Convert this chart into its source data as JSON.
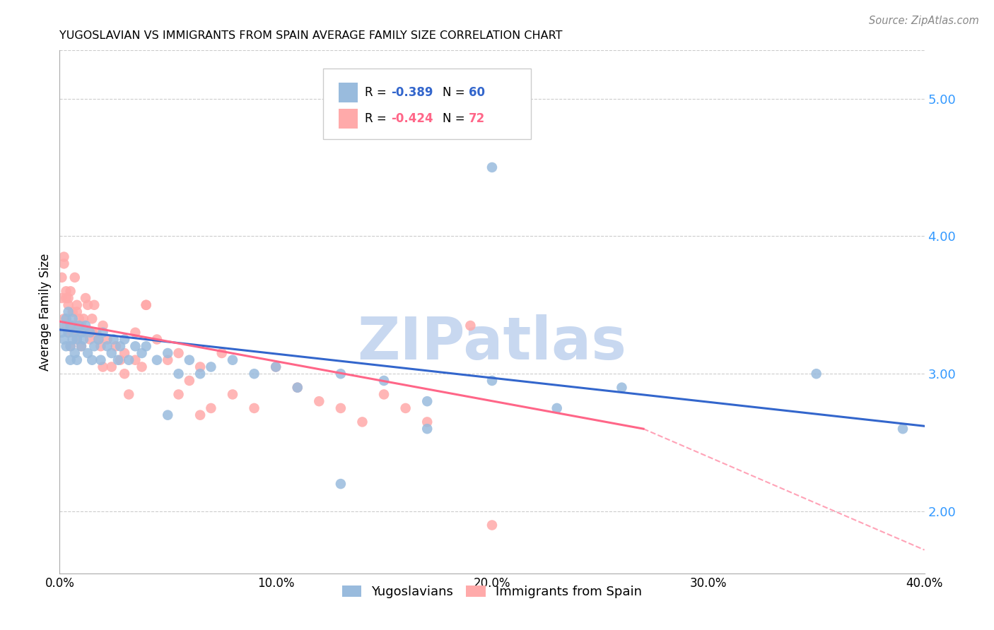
{
  "title": "YUGOSLAVIAN VS IMMIGRANTS FROM SPAIN AVERAGE FAMILY SIZE CORRELATION CHART",
  "source": "Source: ZipAtlas.com",
  "ylabel": "Average Family Size",
  "yticks": [
    2.0,
    3.0,
    4.0,
    5.0
  ],
  "xtick_labels": [
    "0.0%",
    "10.0%",
    "20.0%",
    "30.0%",
    "40.0%"
  ],
  "xtick_vals": [
    0.0,
    0.1,
    0.2,
    0.3,
    0.4
  ],
  "xlim": [
    0.0,
    0.4
  ],
  "ylim": [
    1.55,
    5.35
  ],
  "watermark": "ZIPatlas",
  "legend_r1": "R = -0.389",
  "legend_n1": "N = 60",
  "legend_r2": "R = -0.424",
  "legend_n2": "N = 72",
  "legend_label1": "Yugoslavians",
  "legend_label2": "Immigrants from Spain",
  "color_blue_scatter": "#99BBDD",
  "color_pink_scatter": "#FFAAAA",
  "color_blue_line": "#3366CC",
  "color_pink_line": "#FF6688",
  "color_ytick": "#3399FF",
  "yug_line_x0": 0.0,
  "yug_line_y0": 3.32,
  "yug_line_x1": 0.4,
  "yug_line_y1": 2.62,
  "spain_line_x0": 0.0,
  "spain_line_y0": 3.38,
  "spain_line_x1_solid": 0.27,
  "spain_line_y1_solid": 2.6,
  "spain_line_x1_dash": 0.4,
  "spain_line_y1_dash": 1.72,
  "yug_x": [
    0.001,
    0.002,
    0.002,
    0.003,
    0.003,
    0.004,
    0.004,
    0.005,
    0.005,
    0.005,
    0.006,
    0.006,
    0.007,
    0.007,
    0.008,
    0.008,
    0.009,
    0.01,
    0.01,
    0.011,
    0.012,
    0.013,
    0.014,
    0.015,
    0.016,
    0.018,
    0.019,
    0.02,
    0.022,
    0.024,
    0.025,
    0.027,
    0.028,
    0.03,
    0.032,
    0.035,
    0.038,
    0.04,
    0.045,
    0.05,
    0.055,
    0.06,
    0.065,
    0.07,
    0.08,
    0.09,
    0.1,
    0.11,
    0.13,
    0.15,
    0.17,
    0.2,
    0.23,
    0.26,
    0.13,
    0.17,
    0.2,
    0.35,
    0.39,
    0.05
  ],
  "yug_y": [
    3.3,
    3.25,
    3.35,
    3.2,
    3.4,
    3.3,
    3.45,
    3.2,
    3.35,
    3.1,
    3.4,
    3.25,
    3.3,
    3.15,
    3.25,
    3.1,
    3.35,
    3.2,
    3.3,
    3.25,
    3.35,
    3.15,
    3.3,
    3.1,
    3.2,
    3.25,
    3.1,
    3.3,
    3.2,
    3.15,
    3.25,
    3.1,
    3.2,
    3.25,
    3.1,
    3.2,
    3.15,
    3.2,
    3.1,
    3.15,
    3.0,
    3.1,
    3.0,
    3.05,
    3.1,
    3.0,
    3.05,
    2.9,
    3.0,
    2.95,
    2.8,
    2.95,
    2.75,
    2.9,
    2.2,
    2.6,
    4.5,
    3.0,
    2.6,
    2.7
  ],
  "spain_x": [
    0.001,
    0.001,
    0.002,
    0.002,
    0.003,
    0.003,
    0.004,
    0.004,
    0.005,
    0.005,
    0.006,
    0.006,
    0.007,
    0.007,
    0.008,
    0.008,
    0.009,
    0.009,
    0.01,
    0.011,
    0.012,
    0.012,
    0.013,
    0.014,
    0.015,
    0.016,
    0.017,
    0.018,
    0.019,
    0.02,
    0.022,
    0.024,
    0.026,
    0.028,
    0.03,
    0.032,
    0.035,
    0.038,
    0.04,
    0.045,
    0.05,
    0.055,
    0.06,
    0.065,
    0.07,
    0.075,
    0.08,
    0.09,
    0.1,
    0.11,
    0.12,
    0.13,
    0.14,
    0.15,
    0.16,
    0.17,
    0.005,
    0.003,
    0.002,
    0.004,
    0.006,
    0.008,
    0.01,
    0.015,
    0.02,
    0.03,
    0.035,
    0.04,
    0.055,
    0.065,
    0.2,
    0.19
  ],
  "spain_y": [
    3.7,
    3.55,
    3.8,
    3.4,
    3.6,
    3.35,
    3.5,
    3.3,
    3.6,
    3.35,
    3.45,
    3.3,
    3.7,
    3.35,
    3.5,
    3.25,
    3.4,
    3.3,
    3.35,
    3.4,
    3.55,
    3.3,
    3.5,
    3.25,
    3.4,
    3.5,
    3.3,
    3.25,
    3.2,
    3.35,
    3.25,
    3.05,
    3.2,
    3.1,
    3.15,
    2.85,
    3.3,
    3.05,
    3.5,
    3.25,
    3.1,
    2.85,
    2.95,
    3.05,
    2.75,
    3.15,
    2.85,
    2.75,
    3.05,
    2.9,
    2.8,
    2.75,
    2.65,
    2.85,
    2.75,
    2.65,
    3.2,
    3.55,
    3.85,
    3.55,
    3.35,
    3.45,
    3.2,
    3.3,
    3.05,
    3.0,
    3.1,
    3.5,
    3.15,
    2.7,
    1.9,
    3.35
  ]
}
